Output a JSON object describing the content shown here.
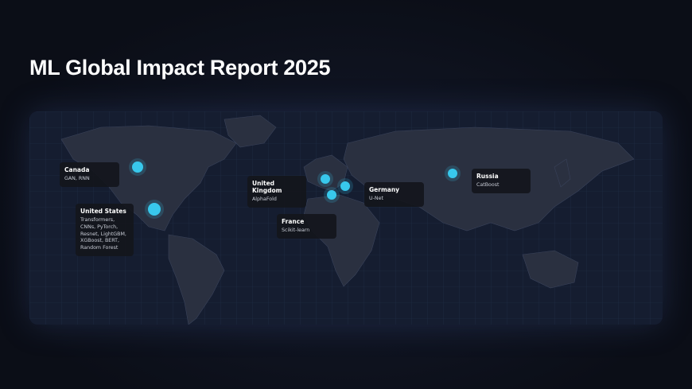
{
  "header": {
    "title": "ML Global Impact Report 2025"
  },
  "locations": [
    {
      "name": "Canada",
      "models": "GAN, RNN"
    },
    {
      "name": "United States",
      "models": "Transformers, CNNs, PyTorch, Resnet, LightGBM, XGBoost, BERT, Random Forest"
    },
    {
      "name": "United Kingdom",
      "models": "AlphaFold"
    },
    {
      "name": "France",
      "models": "Scikit-learn"
    },
    {
      "name": "Germany",
      "models": "U-Net"
    },
    {
      "name": "Russia",
      "models": "CatBoost"
    }
  ]
}
